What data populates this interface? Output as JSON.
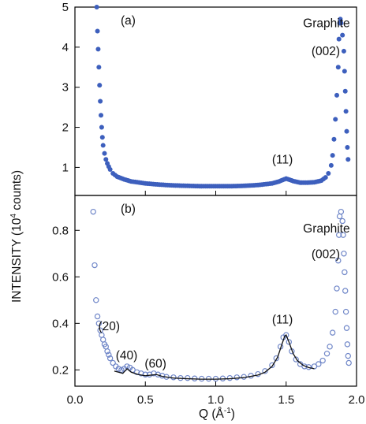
{
  "chart_data": {
    "type": "scatter",
    "ylabel": "INTENSITY (10",
    "ylabel_sup": "4",
    "ylabel_rest": " counts)",
    "xlabel": "Q (Å",
    "xlabel_sup": "-1",
    "xlabel_rest": ")",
    "xlim": [
      0.0,
      2.0
    ],
    "x_ticks": [
      0.0,
      0.5,
      1.0,
      1.5,
      2.0
    ],
    "x_tick_labels": [
      "0.0",
      "0.5",
      "1.0",
      "1.5",
      "2.0"
    ],
    "panels": [
      {
        "id": "a",
        "label": "(a)",
        "ylim": [
          0.3,
          5.0
        ],
        "y_ticks": [
          1,
          2,
          3,
          4,
          5
        ],
        "y_tick_labels": [
          "1",
          "2",
          "3",
          "4",
          "5"
        ],
        "marker": "filled",
        "color": "#3d5fbd",
        "points": [
          [
            0.155,
            5.0
          ],
          [
            0.16,
            4.4
          ],
          [
            0.165,
            3.95
          ],
          [
            0.17,
            3.5
          ],
          [
            0.175,
            3.05
          ],
          [
            0.18,
            2.65
          ],
          [
            0.185,
            2.3
          ],
          [
            0.19,
            2.0
          ],
          [
            0.195,
            1.75
          ],
          [
            0.2,
            1.55
          ],
          [
            0.21,
            1.35
          ],
          [
            0.22,
            1.2
          ],
          [
            0.23,
            1.1
          ],
          [
            0.24,
            1.02
          ],
          [
            0.25,
            0.95
          ],
          [
            0.27,
            0.85
          ],
          [
            0.3,
            0.77
          ],
          [
            0.35,
            0.7
          ],
          [
            0.4,
            0.65
          ],
          [
            0.5,
            0.6
          ],
          [
            0.6,
            0.57
          ],
          [
            0.7,
            0.55
          ],
          [
            0.8,
            0.54
          ],
          [
            0.9,
            0.53
          ],
          [
            1.0,
            0.53
          ],
          [
            1.1,
            0.53
          ],
          [
            1.2,
            0.54
          ],
          [
            1.3,
            0.56
          ],
          [
            1.4,
            0.6
          ],
          [
            1.45,
            0.65
          ],
          [
            1.5,
            0.72
          ],
          [
            1.55,
            0.66
          ],
          [
            1.6,
            0.62
          ],
          [
            1.65,
            0.62
          ],
          [
            1.7,
            0.63
          ],
          [
            1.75,
            0.67
          ],
          [
            1.78,
            0.75
          ],
          [
            1.8,
            0.85
          ],
          [
            1.82,
            1.05
          ],
          [
            1.83,
            1.3
          ],
          [
            1.84,
            1.7
          ],
          [
            1.85,
            2.2
          ],
          [
            1.86,
            2.8
          ],
          [
            1.87,
            3.5
          ],
          [
            1.875,
            4.2
          ],
          [
            1.88,
            4.6
          ],
          [
            1.885,
            4.7
          ],
          [
            1.89,
            4.6
          ],
          [
            1.9,
            4.3
          ],
          [
            1.91,
            3.9
          ],
          [
            1.915,
            3.4
          ],
          [
            1.92,
            2.9
          ],
          [
            1.925,
            2.4
          ],
          [
            1.93,
            1.9
          ],
          [
            1.935,
            1.5
          ],
          [
            1.94,
            1.2
          ]
        ],
        "annotations": [
          {
            "text": "(11)",
            "x": 1.4,
            "y": 1.1
          },
          {
            "text": "Graphite",
            "x": 1.62,
            "y": 4.5
          },
          {
            "text": "(002)",
            "x": 1.68,
            "y": 3.8
          }
        ]
      },
      {
        "id": "b",
        "label": "(b)",
        "ylim": [
          0.13,
          0.95
        ],
        "y_ticks": [
          0.2,
          0.4,
          0.6,
          0.8
        ],
        "y_tick_labels": [
          "0.2",
          "0.4",
          "0.6",
          "0.8"
        ],
        "marker": "open",
        "color": "#6f86c8",
        "points": [
          [
            0.13,
            0.88
          ],
          [
            0.14,
            0.65
          ],
          [
            0.15,
            0.5
          ],
          [
            0.16,
            0.43
          ],
          [
            0.17,
            0.4
          ],
          [
            0.18,
            0.37
          ],
          [
            0.19,
            0.35
          ],
          [
            0.2,
            0.33
          ],
          [
            0.21,
            0.31
          ],
          [
            0.22,
            0.3
          ],
          [
            0.23,
            0.28
          ],
          [
            0.24,
            0.265
          ],
          [
            0.25,
            0.25
          ],
          [
            0.27,
            0.23
          ],
          [
            0.29,
            0.215
          ],
          [
            0.31,
            0.205
          ],
          [
            0.33,
            0.2
          ],
          [
            0.35,
            0.205
          ],
          [
            0.37,
            0.215
          ],
          [
            0.39,
            0.21
          ],
          [
            0.41,
            0.2
          ],
          [
            0.44,
            0.19
          ],
          [
            0.47,
            0.185
          ],
          [
            0.5,
            0.18
          ],
          [
            0.53,
            0.18
          ],
          [
            0.56,
            0.185
          ],
          [
            0.59,
            0.18
          ],
          [
            0.62,
            0.175
          ],
          [
            0.65,
            0.17
          ],
          [
            0.7,
            0.168
          ],
          [
            0.75,
            0.165
          ],
          [
            0.8,
            0.165
          ],
          [
            0.85,
            0.163
          ],
          [
            0.9,
            0.162
          ],
          [
            0.95,
            0.162
          ],
          [
            1.0,
            0.162
          ],
          [
            1.05,
            0.163
          ],
          [
            1.1,
            0.165
          ],
          [
            1.15,
            0.168
          ],
          [
            1.2,
            0.17
          ],
          [
            1.25,
            0.175
          ],
          [
            1.3,
            0.182
          ],
          [
            1.35,
            0.195
          ],
          [
            1.4,
            0.22
          ],
          [
            1.43,
            0.25
          ],
          [
            1.46,
            0.3
          ],
          [
            1.48,
            0.34
          ],
          [
            1.5,
            0.35
          ],
          [
            1.52,
            0.32
          ],
          [
            1.54,
            0.28
          ],
          [
            1.57,
            0.245
          ],
          [
            1.6,
            0.225
          ],
          [
            1.63,
            0.215
          ],
          [
            1.66,
            0.212
          ],
          [
            1.7,
            0.215
          ],
          [
            1.73,
            0.225
          ],
          [
            1.76,
            0.24
          ],
          [
            1.79,
            0.27
          ],
          [
            1.81,
            0.3
          ],
          [
            1.83,
            0.36
          ],
          [
            1.85,
            0.45
          ],
          [
            1.86,
            0.55
          ],
          [
            1.87,
            0.67
          ],
          [
            1.875,
            0.78
          ],
          [
            1.88,
            0.86
          ],
          [
            1.89,
            0.88
          ],
          [
            1.9,
            0.84
          ],
          [
            1.905,
            0.78
          ],
          [
            1.91,
            0.7
          ],
          [
            1.915,
            0.62
          ],
          [
            1.92,
            0.54
          ],
          [
            1.925,
            0.45
          ],
          [
            1.93,
            0.38
          ],
          [
            1.935,
            0.31
          ],
          [
            1.94,
            0.26
          ],
          [
            1.945,
            0.23
          ]
        ],
        "fit": [
          [
            0.28,
            0.195
          ],
          [
            0.31,
            0.19
          ],
          [
            0.34,
            0.185
          ],
          [
            0.37,
            0.205
          ],
          [
            0.4,
            0.19
          ],
          [
            0.45,
            0.18
          ],
          [
            0.5,
            0.175
          ],
          [
            0.55,
            0.178
          ],
          [
            0.58,
            0.18
          ],
          [
            0.62,
            0.172
          ],
          [
            0.7,
            0.165
          ],
          [
            0.8,
            0.162
          ],
          [
            0.9,
            0.16
          ],
          [
            1.0,
            0.16
          ],
          [
            1.1,
            0.162
          ],
          [
            1.2,
            0.167
          ],
          [
            1.3,
            0.178
          ],
          [
            1.35,
            0.19
          ],
          [
            1.4,
            0.215
          ],
          [
            1.44,
            0.255
          ],
          [
            1.47,
            0.31
          ],
          [
            1.49,
            0.345
          ],
          [
            1.5,
            0.35
          ],
          [
            1.52,
            0.32
          ],
          [
            1.55,
            0.27
          ],
          [
            1.58,
            0.24
          ],
          [
            1.62,
            0.22
          ],
          [
            1.66,
            0.21
          ],
          [
            1.7,
            0.205
          ]
        ],
        "annotations": [
          {
            "text": "(20)",
            "x": 0.165,
            "y": 0.37
          },
          {
            "text": "(40)",
            "x": 0.29,
            "y": 0.245
          },
          {
            "text": "(60)",
            "x": 0.495,
            "y": 0.21
          },
          {
            "text": "(11)",
            "x": 1.4,
            "y": 0.4
          },
          {
            "text": "Graphite",
            "x": 1.62,
            "y": 0.79
          },
          {
            "text": "(002)",
            "x": 1.68,
            "y": 0.68
          }
        ]
      }
    ]
  }
}
